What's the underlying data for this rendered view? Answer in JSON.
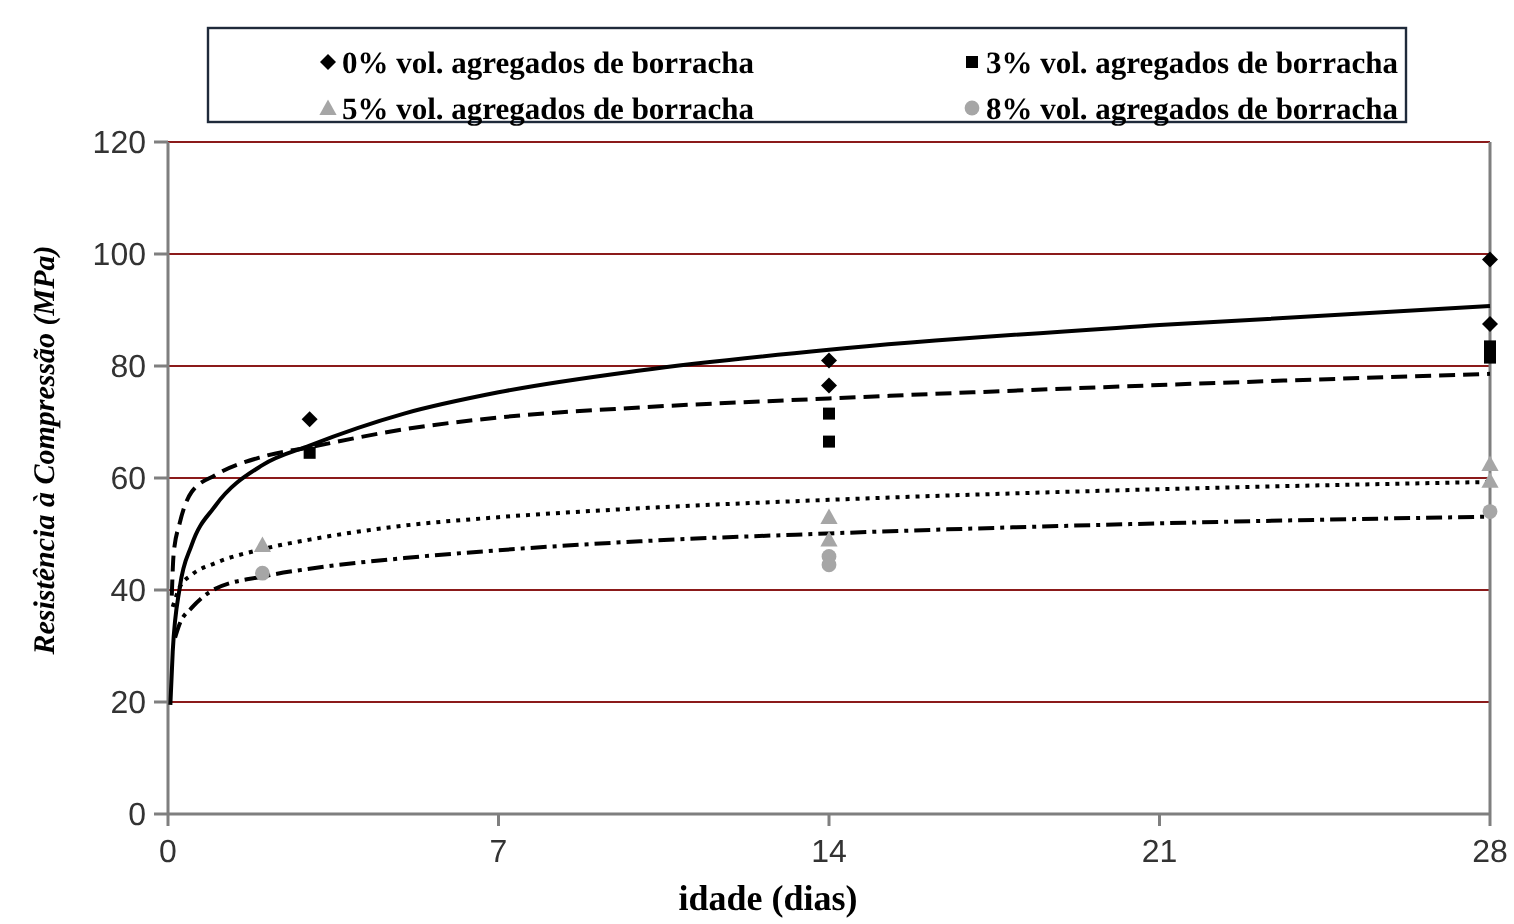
{
  "chart_data": {
    "type": "scatter",
    "xlabel": "idade (dias)",
    "ylabel": "Resistência à Compressão (MPa)",
    "xlim": [
      0,
      28
    ],
    "xticks": [
      0,
      7,
      14,
      21,
      28
    ],
    "ylim": [
      0,
      120
    ],
    "yticks": [
      0,
      20,
      40,
      60,
      80,
      100,
      120
    ],
    "grid": "y",
    "legend": "top",
    "series": [
      {
        "name": "0% vol. agregados de borracha",
        "type": "scatter",
        "marker": "diamond",
        "color": "#000000",
        "x": [
          3,
          14,
          14,
          28,
          28
        ],
        "values": [
          70.5,
          81,
          76.5,
          99,
          87.5
        ]
      },
      {
        "name": "3% vol. agregados de borracha",
        "type": "scatter",
        "marker": "square",
        "color": "#000000",
        "x": [
          3,
          14,
          14,
          28,
          28
        ],
        "values": [
          64.5,
          71.5,
          66.5,
          83.5,
          81.5
        ]
      },
      {
        "name": "5% vol. agregados de borracha",
        "type": "scatter",
        "marker": "triangle",
        "color": "#a6a6a6",
        "x": [
          2,
          14,
          14,
          28,
          28
        ],
        "values": [
          48,
          53,
          49,
          62.5,
          59.5
        ]
      },
      {
        "name": "8% vol. agregados de borracha",
        "type": "scatter",
        "marker": "circle",
        "color": "#a6a6a6",
        "x": [
          2,
          14,
          14,
          28
        ],
        "values": [
          43,
          46,
          44.5,
          54
        ]
      },
      {
        "type": "line",
        "color": "#000000",
        "line_style": "solid",
        "marker": "none",
        "x": [
          0.05,
          0.1,
          0.25,
          0.5,
          1,
          2,
          3,
          5,
          7,
          10,
          14,
          21,
          28
        ],
        "values": [
          19.5,
          29,
          40.5,
          48,
          55,
          62.3,
          65.8,
          71.5,
          75.3,
          79.2,
          82.9,
          87.3,
          90.7
        ]
      },
      {
        "type": "line",
        "color": "#000000",
        "line_style": "dashed",
        "marker": "none",
        "x": [
          0.08,
          0.12,
          0.25,
          0.5,
          1,
          2,
          3,
          5,
          7,
          10,
          14,
          21,
          28
        ],
        "values": [
          39,
          46.5,
          52,
          57.5,
          60.5,
          63.8,
          65.5,
          68.7,
          70.8,
          72.6,
          74.2,
          76.6,
          78.6
        ]
      },
      {
        "type": "line",
        "color": "#000000",
        "line_style": "dotted",
        "marker": "none",
        "x": [
          0.1,
          0.25,
          0.5,
          1,
          2,
          3,
          5,
          7,
          10,
          14,
          21,
          28
        ],
        "values": [
          37,
          40.5,
          42.7,
          44.8,
          47.3,
          49,
          51.5,
          53,
          54.6,
          56.1,
          58,
          59.3
        ]
      },
      {
        "type": "line",
        "color": "#000000",
        "line_style": "dashdot",
        "marker": "none",
        "x": [
          0.15,
          0.25,
          0.5,
          1,
          2,
          3,
          5,
          7,
          10,
          14,
          21,
          28
        ],
        "values": [
          31.5,
          34,
          36.8,
          40.2,
          42.4,
          43.8,
          45.7,
          47.1,
          48.7,
          50.1,
          51.9,
          53.1
        ]
      }
    ]
  }
}
